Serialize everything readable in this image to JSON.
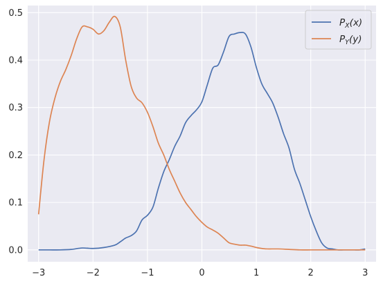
{
  "chart_data": {
    "type": "line",
    "title": "",
    "xlabel": "",
    "ylabel": "",
    "xlim": [
      -3.2,
      3.2
    ],
    "ylim": [
      -0.025,
      0.515
    ],
    "grid": true,
    "legend_position": "top-right",
    "x_ticks": [
      -3,
      -2,
      -1,
      0,
      1,
      2,
      3
    ],
    "x_tick_labels": [
      "−3",
      "−2",
      "−1",
      "0",
      "1",
      "2",
      "3"
    ],
    "y_ticks": [
      0.0,
      0.1,
      0.2,
      0.3,
      0.4,
      0.5
    ],
    "y_tick_labels": [
      "0.0",
      "0.1",
      "0.2",
      "0.3",
      "0.4",
      "0.5"
    ],
    "series": [
      {
        "name": "P_X(x)",
        "legend_main": "P",
        "legend_sub": "X",
        "legend_arg": "(x)",
        "color": "#4c72b0",
        "x": [
          -3.0,
          -2.8,
          -2.6,
          -2.4,
          -2.2,
          -2.0,
          -1.8,
          -1.6,
          -1.5,
          -1.4,
          -1.3,
          -1.2,
          -1.1,
          -1.0,
          -0.9,
          -0.8,
          -0.7,
          -0.6,
          -0.5,
          -0.4,
          -0.3,
          -0.2,
          -0.1,
          0.0,
          0.1,
          0.2,
          0.3,
          0.4,
          0.5,
          0.6,
          0.7,
          0.8,
          0.9,
          1.0,
          1.1,
          1.2,
          1.3,
          1.4,
          1.5,
          1.6,
          1.7,
          1.8,
          1.9,
          2.0,
          2.1,
          2.2,
          2.3,
          2.4,
          2.5,
          2.6,
          2.7,
          2.8,
          2.9,
          3.0
        ],
        "values": [
          0.0,
          0.0,
          0.0,
          0.001,
          0.004,
          0.003,
          0.005,
          0.01,
          0.017,
          0.025,
          0.03,
          0.04,
          0.063,
          0.073,
          0.09,
          0.13,
          0.165,
          0.19,
          0.218,
          0.24,
          0.268,
          0.283,
          0.295,
          0.312,
          0.348,
          0.383,
          0.39,
          0.418,
          0.45,
          0.455,
          0.458,
          0.455,
          0.428,
          0.385,
          0.35,
          0.33,
          0.31,
          0.28,
          0.245,
          0.215,
          0.17,
          0.14,
          0.105,
          0.07,
          0.04,
          0.015,
          0.004,
          0.002,
          0.0,
          0.0,
          0.0,
          0.0,
          0.0,
          0.002
        ],
        "note_x_offset": true
      },
      {
        "name": "P_Y(y)",
        "legend_main": "P",
        "legend_sub": "Y",
        "legend_arg": "(y)",
        "color": "#dd8452",
        "x": [
          -3.0,
          -2.9,
          -2.8,
          -2.7,
          -2.6,
          -2.5,
          -2.4,
          -2.3,
          -2.2,
          -2.1,
          -2.0,
          -1.9,
          -1.8,
          -1.7,
          -1.6,
          -1.5,
          -1.4,
          -1.3,
          -1.2,
          -1.1,
          -1.0,
          -0.9,
          -0.8,
          -0.7,
          -0.6,
          -0.5,
          -0.4,
          -0.3,
          -0.2,
          -0.1,
          0.0,
          0.1,
          0.2,
          0.3,
          0.4,
          0.5,
          0.6,
          0.7,
          0.8,
          0.9,
          1.0,
          1.1,
          1.2,
          1.4,
          1.6,
          1.8,
          2.0,
          2.2,
          2.4,
          2.6,
          2.8,
          3.0
        ],
        "values": [
          0.075,
          0.19,
          0.27,
          0.32,
          0.355,
          0.38,
          0.41,
          0.445,
          0.47,
          0.47,
          0.465,
          0.455,
          0.462,
          0.48,
          0.492,
          0.47,
          0.4,
          0.345,
          0.32,
          0.31,
          0.29,
          0.26,
          0.225,
          0.2,
          0.17,
          0.145,
          0.12,
          0.1,
          0.085,
          0.07,
          0.058,
          0.048,
          0.042,
          0.035,
          0.025,
          0.015,
          0.012,
          0.01,
          0.01,
          0.008,
          0.005,
          0.003,
          0.002,
          0.002,
          0.001,
          0.0,
          0.0,
          0.0,
          0.0,
          0.0,
          0.0,
          0.0
        ]
      }
    ]
  }
}
